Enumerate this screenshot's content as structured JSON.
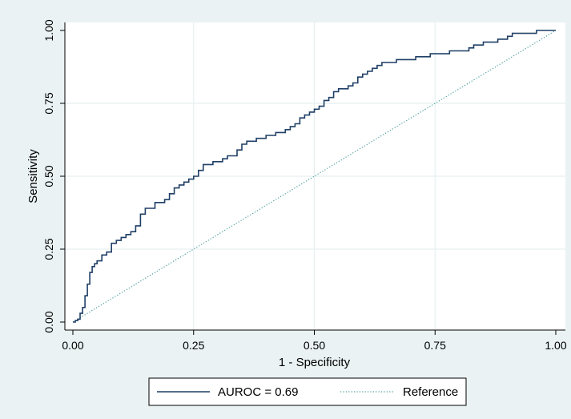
{
  "chart_data": {
    "type": "line",
    "title": "",
    "xlabel": "1 - Specificity",
    "ylabel": "Sensitivity",
    "xlim": [
      0,
      1
    ],
    "ylim": [
      0,
      1
    ],
    "xticks": [
      "0.00",
      "0.25",
      "0.50",
      "0.75",
      "1.00"
    ],
    "yticks": [
      "0.00",
      "0.25",
      "0.50",
      "0.75",
      "1.00"
    ],
    "grid": true,
    "legend_position": "bottom",
    "series": [
      {
        "name": "AUROC = 0.69",
        "style": "solid",
        "color": "#1f3f66",
        "x": [
          0.0,
          0.005,
          0.01,
          0.015,
          0.02,
          0.025,
          0.03,
          0.035,
          0.04,
          0.045,
          0.05,
          0.06,
          0.07,
          0.08,
          0.09,
          0.1,
          0.11,
          0.12,
          0.13,
          0.14,
          0.15,
          0.16,
          0.17,
          0.18,
          0.19,
          0.2,
          0.21,
          0.22,
          0.23,
          0.24,
          0.25,
          0.26,
          0.27,
          0.28,
          0.29,
          0.3,
          0.31,
          0.32,
          0.33,
          0.34,
          0.35,
          0.36,
          0.37,
          0.38,
          0.39,
          0.4,
          0.41,
          0.42,
          0.43,
          0.44,
          0.45,
          0.46,
          0.47,
          0.48,
          0.49,
          0.5,
          0.51,
          0.52,
          0.53,
          0.54,
          0.55,
          0.56,
          0.57,
          0.58,
          0.59,
          0.6,
          0.61,
          0.62,
          0.63,
          0.64,
          0.65,
          0.66,
          0.67,
          0.68,
          0.69,
          0.7,
          0.71,
          0.72,
          0.73,
          0.74,
          0.75,
          0.76,
          0.77,
          0.78,
          0.79,
          0.8,
          0.81,
          0.82,
          0.83,
          0.84,
          0.85,
          0.86,
          0.87,
          0.88,
          0.89,
          0.9,
          0.91,
          0.92,
          0.93,
          0.94,
          0.95,
          0.96,
          0.97,
          0.98,
          0.99,
          1.0
        ],
        "y": [
          0.0,
          0.005,
          0.01,
          0.03,
          0.05,
          0.09,
          0.13,
          0.17,
          0.19,
          0.2,
          0.21,
          0.23,
          0.24,
          0.27,
          0.28,
          0.29,
          0.3,
          0.31,
          0.33,
          0.37,
          0.39,
          0.39,
          0.41,
          0.41,
          0.42,
          0.44,
          0.46,
          0.47,
          0.48,
          0.49,
          0.5,
          0.52,
          0.54,
          0.54,
          0.55,
          0.55,
          0.56,
          0.57,
          0.57,
          0.59,
          0.61,
          0.62,
          0.62,
          0.63,
          0.63,
          0.64,
          0.64,
          0.65,
          0.65,
          0.66,
          0.67,
          0.68,
          0.7,
          0.71,
          0.72,
          0.73,
          0.74,
          0.76,
          0.77,
          0.79,
          0.8,
          0.8,
          0.81,
          0.82,
          0.84,
          0.85,
          0.86,
          0.87,
          0.88,
          0.89,
          0.89,
          0.89,
          0.9,
          0.9,
          0.9,
          0.9,
          0.91,
          0.91,
          0.91,
          0.92,
          0.92,
          0.92,
          0.92,
          0.93,
          0.93,
          0.93,
          0.93,
          0.94,
          0.95,
          0.95,
          0.96,
          0.96,
          0.96,
          0.97,
          0.97,
          0.98,
          0.99,
          0.99,
          0.99,
          0.99,
          0.99,
          1.0,
          1.0,
          1.0,
          1.0,
          1.0
        ]
      },
      {
        "name": "Reference",
        "style": "dotted",
        "color": "#4a9d9c",
        "x": [
          0,
          1
        ],
        "y": [
          0,
          1
        ]
      }
    ]
  }
}
